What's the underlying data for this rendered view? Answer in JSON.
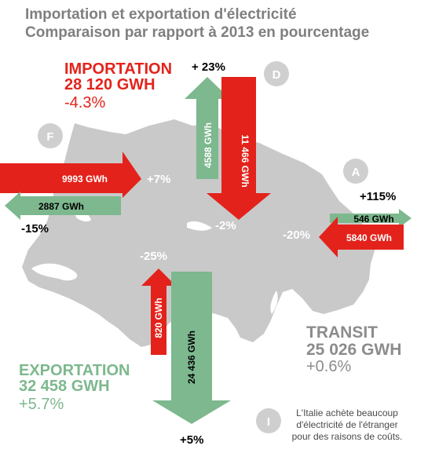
{
  "title": {
    "line1": "Importation et exportation d'électricité",
    "line2": "Comparaison par rapport à 2013 en pourcentage"
  },
  "importation": {
    "label": "IMPORTATION",
    "value": "28 120 GWH",
    "change": "-4.3%"
  },
  "exportation": {
    "label": "EXPORTATION",
    "value": "32 458 GWH",
    "change": "+5.7%"
  },
  "transit": {
    "label": "TRANSIT",
    "value": "25 026 GWH",
    "change": "+0.6%"
  },
  "countries": {
    "germany": "D",
    "france": "F",
    "austria": "A",
    "italy": "I"
  },
  "flows": {
    "germany_export": {
      "amount": "4588 GWh",
      "change": "+ 23%"
    },
    "germany_import": {
      "amount": "11 466 GWh",
      "change": "-2%"
    },
    "france_import": {
      "amount": "9993 GWh",
      "change": "+7%"
    },
    "france_export": {
      "amount": "2887 GWh",
      "change": "-15%"
    },
    "austria_export": {
      "amount": "546 GWh",
      "change": "+115%"
    },
    "austria_import": {
      "amount": "5840 GWh",
      "change": "-20%"
    },
    "italy_import": {
      "amount": "820 GWh",
      "change": "-25%"
    },
    "italy_export": {
      "amount": "24 436 GWh",
      "change": "+5%"
    }
  },
  "italy_note": "L'Italie achète beaucoup d'électricité de l'étranger pour des raisons de coûts.",
  "colors": {
    "import_red": "#e3231b",
    "export_green": "#7db88e",
    "map_grey": "#c9c9c9",
    "badge_grey": "#cfcfcf",
    "title_grey": "#7f7f7f"
  }
}
